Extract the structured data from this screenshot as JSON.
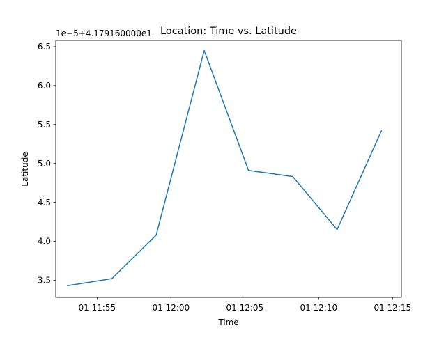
{
  "chart_data": {
    "type": "line",
    "title": "Location: Time vs. Latitude",
    "xlabel": "Time",
    "ylabel": "Latitude",
    "y_offset_label": "1e−5+4.179160000e1",
    "x_ticks": [
      "01 11:55",
      "01 12:00",
      "01 12:05",
      "01 12:10",
      "01 12:15"
    ],
    "x_tick_minutes": [
      55,
      60,
      65,
      70,
      75
    ],
    "y_ticks": [
      "3.5",
      "4.0",
      "4.5",
      "5.0",
      "5.5",
      "6.0",
      "6.5"
    ],
    "y_tick_values": [
      3.5,
      4.0,
      4.5,
      5.0,
      5.5,
      6.0,
      6.5
    ],
    "xlim_minutes": [
      52.2,
      75.6
    ],
    "ylim": [
      3.28,
      6.58
    ],
    "grid": false,
    "series": [
      {
        "color": "#1f77b4",
        "x": [
          "11:53:00",
          "11:56:00",
          "11:59:00",
          "12:02:15",
          "12:05:15",
          "12:08:15",
          "12:11:15",
          "12:14:15"
        ],
        "x_minutes": [
          53.0,
          56.0,
          59.0,
          62.25,
          65.25,
          68.25,
          71.25,
          74.25
        ],
        "y": [
          3.43,
          3.52,
          4.08,
          6.45,
          4.91,
          4.83,
          4.15,
          5.42
        ]
      }
    ]
  }
}
